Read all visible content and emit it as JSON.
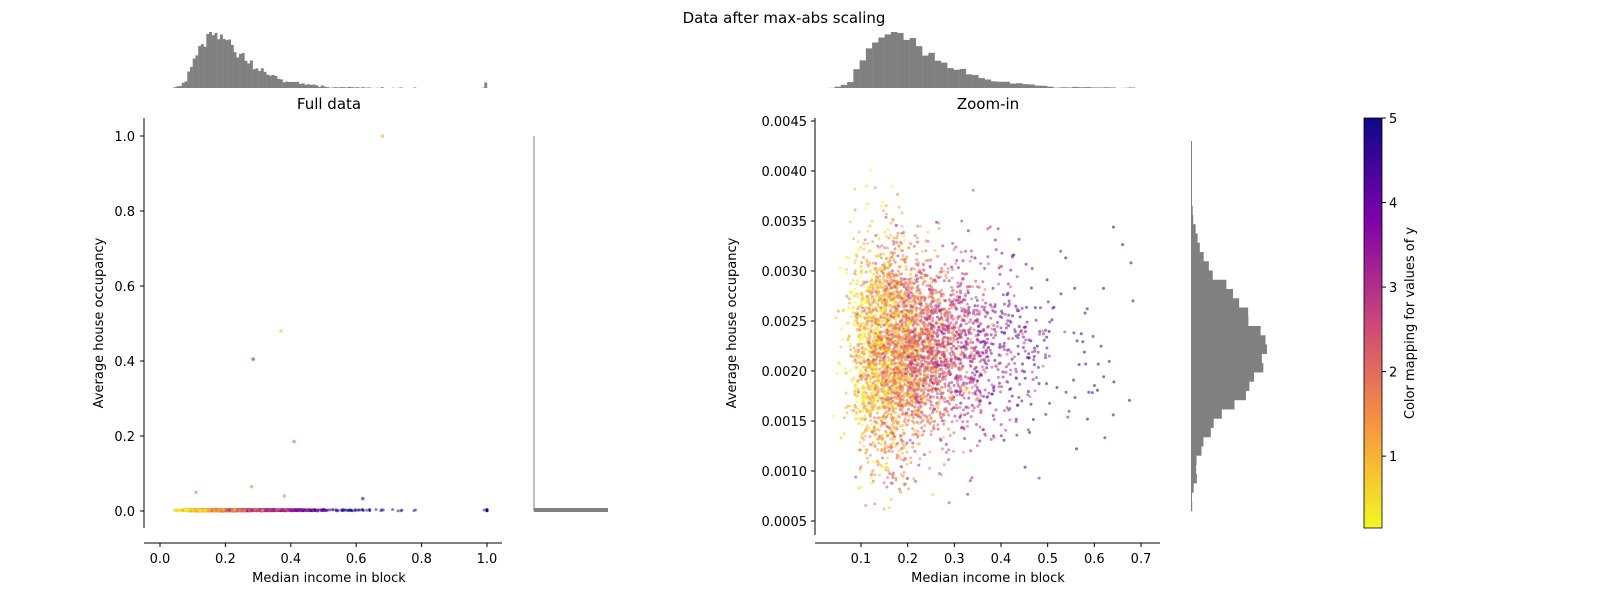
{
  "title": "Data after max-abs scaling",
  "chart_data": [
    {
      "type": "scatter",
      "title": "Full data",
      "xlabel": "Median income in block",
      "ylabel": "Average house occupancy",
      "xlim": [
        -0.05,
        1.05
      ],
      "ylim": [
        -0.05,
        1.05
      ],
      "xticks": [
        "0.0",
        "0.2",
        "0.4",
        "0.6",
        "0.8",
        "1.0"
      ],
      "yticks": [
        "0.0",
        "0.2",
        "0.4",
        "0.6",
        "0.8",
        "1.0"
      ],
      "outliers": [
        {
          "x": 0.68,
          "y": 1.0,
          "c": 1.2
        },
        {
          "x": 0.37,
          "y": 0.48,
          "c": 0.8
        },
        {
          "x": 0.285,
          "y": 0.405,
          "c": 3.5
        },
        {
          "x": 0.41,
          "y": 0.185,
          "c": 2.2
        },
        {
          "x": 0.28,
          "y": 0.065,
          "c": 1.6
        },
        {
          "x": 0.11,
          "y": 0.05,
          "c": 1.7
        },
        {
          "x": 0.38,
          "y": 0.04,
          "c": 1.6
        },
        {
          "x": 0.62,
          "y": 0.033,
          "c": 4.6
        }
      ],
      "marginal_histograms": [
        "top: x",
        "right: y"
      ]
    },
    {
      "type": "scatter",
      "title": "Zoom-in",
      "xlabel": "Median income in block",
      "ylabel": "Average house occupancy",
      "xlim": [
        0.0,
        0.73
      ],
      "ylim": [
        0.00045,
        0.0045
      ],
      "xticks": [
        "0.1",
        "0.2",
        "0.3",
        "0.4",
        "0.5",
        "0.6",
        "0.7"
      ],
      "yticks": [
        "0.0005",
        "0.0010",
        "0.0015",
        "0.0020",
        "0.0025",
        "0.0030",
        "0.0035",
        "0.0040",
        "0.0045"
      ],
      "marginal_histograms": [
        "top: x",
        "right: y"
      ]
    }
  ],
  "colorbar": {
    "label": "Color mapping for values of y",
    "colormap": "plasma_r",
    "range": [
      0.15,
      5
    ],
    "ticks": [
      "1",
      "2",
      "3",
      "4",
      "5"
    ],
    "colors": [
      "#0d0887",
      "#7e03a8",
      "#cc4778",
      "#f89540",
      "#f0f921"
    ]
  },
  "histogram_color": "#808080"
}
